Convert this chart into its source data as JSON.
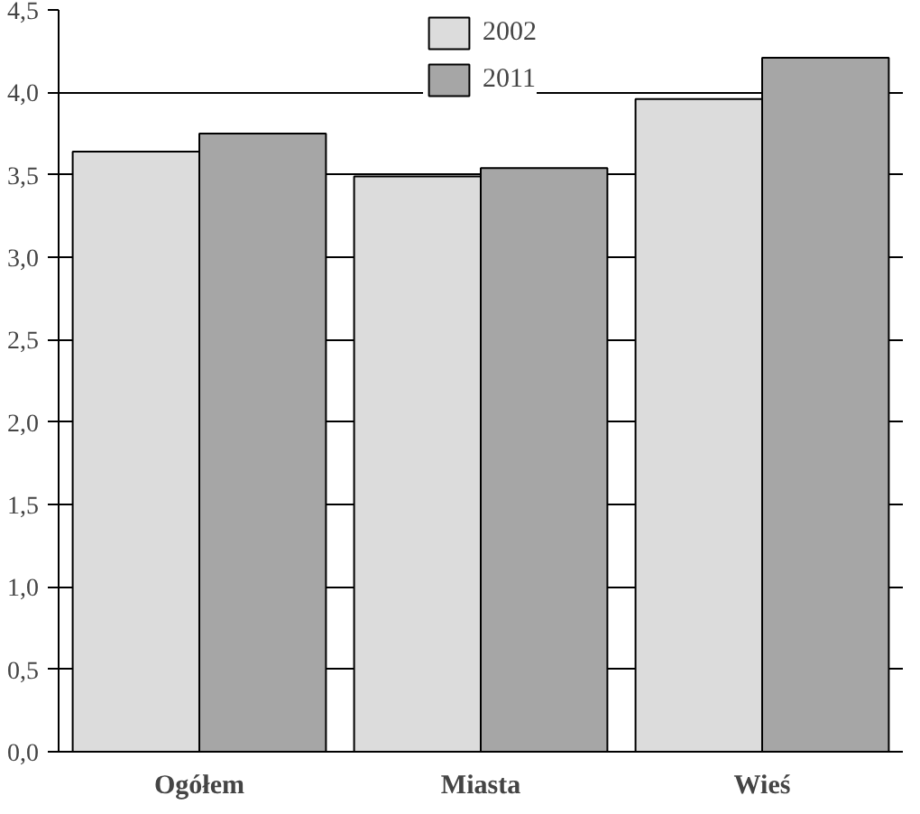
{
  "chart_data": {
    "type": "bar",
    "categories": [
      "Ogółem",
      "Miasta",
      "Wieś"
    ],
    "series": [
      {
        "name": "2002",
        "color": "#dcdcdc",
        "values": [
          3.64,
          3.49,
          3.96
        ]
      },
      {
        "name": "2011",
        "color": "#a6a6a6",
        "values": [
          3.75,
          3.54,
          4.21
        ]
      }
    ],
    "ylim": [
      0,
      4.5
    ],
    "yticks": [
      {
        "value": 0,
        "label": "0,0"
      },
      {
        "value": 0.5,
        "label": "0,5"
      },
      {
        "value": 1,
        "label": "1,0"
      },
      {
        "value": 1.5,
        "label": "1,5"
      },
      {
        "value": 2,
        "label": "2,0"
      },
      {
        "value": 2.5,
        "label": "2,5"
      },
      {
        "value": 3,
        "label": "3,0"
      },
      {
        "value": 3.5,
        "label": "3,5"
      },
      {
        "value": 4,
        "label": "4,0"
      },
      {
        "value": 4.5,
        "label": "4,5"
      }
    ],
    "grid": "y",
    "legend": "top"
  }
}
